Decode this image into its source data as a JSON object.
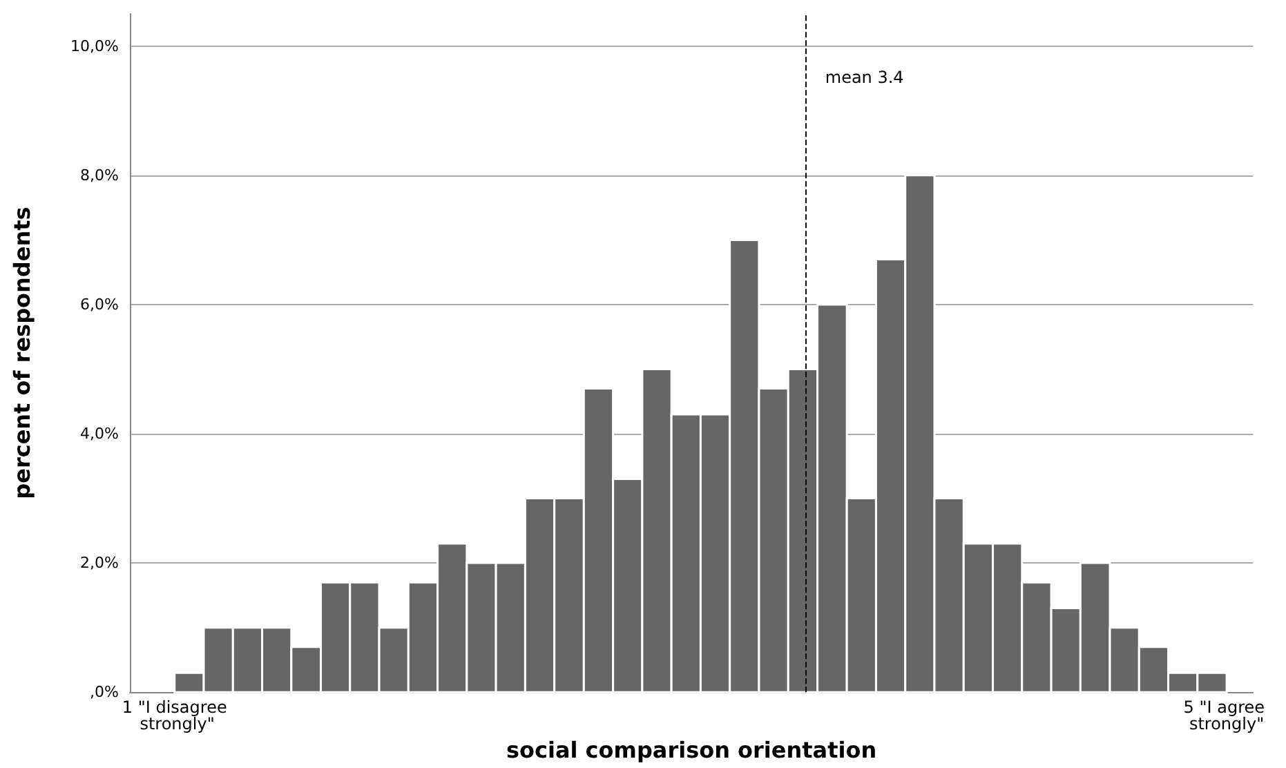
{
  "chart_data": {
    "type": "histogram",
    "xlabel": "social comparison orientation",
    "ylabel": "percent of respondents",
    "bins": [
      1,
      1.111,
      1.222,
      1.333,
      1.444,
      1.556,
      1.667,
      1.778,
      1.889,
      2,
      2.111,
      2.222,
      2.333,
      2.444,
      2.556,
      2.667,
      2.778,
      2.889,
      3,
      3.111,
      3.222,
      3.333,
      3.444,
      3.556,
      3.667,
      3.778,
      3.889,
      4,
      4.111,
      4.222,
      4.333,
      4.444,
      4.556,
      4.667,
      4.778,
      4.889,
      5
    ],
    "values": [
      0.3,
      1,
      1,
      1,
      0.7,
      1.7,
      1.7,
      1,
      1.7,
      2.3,
      2,
      2,
      3,
      3,
      4.7,
      3.3,
      5,
      4.3,
      4.3,
      7,
      4.7,
      5,
      6,
      3,
      6.7,
      8,
      3,
      2.3,
      2.3,
      1.7,
      1.3,
      2,
      1,
      0.7,
      0.3,
      0.3
    ],
    "color": "#666666",
    "xlim": [
      0.83,
      5.1
    ],
    "xticks": [
      {
        "value": 1,
        "label": "1 \"I disagree strongly\""
      },
      {
        "value": 5,
        "label": "5 \"I agree strongly\""
      }
    ],
    "ylim": [
      0,
      10.5
    ],
    "yticks": [
      {
        "value": 0,
        "label": ",0%"
      },
      {
        "value": 2,
        "label": "2,0%"
      },
      {
        "value": 4,
        "label": "4,0%"
      },
      {
        "value": 6,
        "label": "6,0%"
      },
      {
        "value": 8,
        "label": "8,0%"
      },
      {
        "value": 10,
        "label": "10,0%"
      }
    ],
    "grid": "y",
    "ref_lines": [
      {
        "axis": "x",
        "value": 3.4,
        "label": "mean 3.4",
        "line_style": "dashed",
        "color": "#000000"
      }
    ]
  }
}
